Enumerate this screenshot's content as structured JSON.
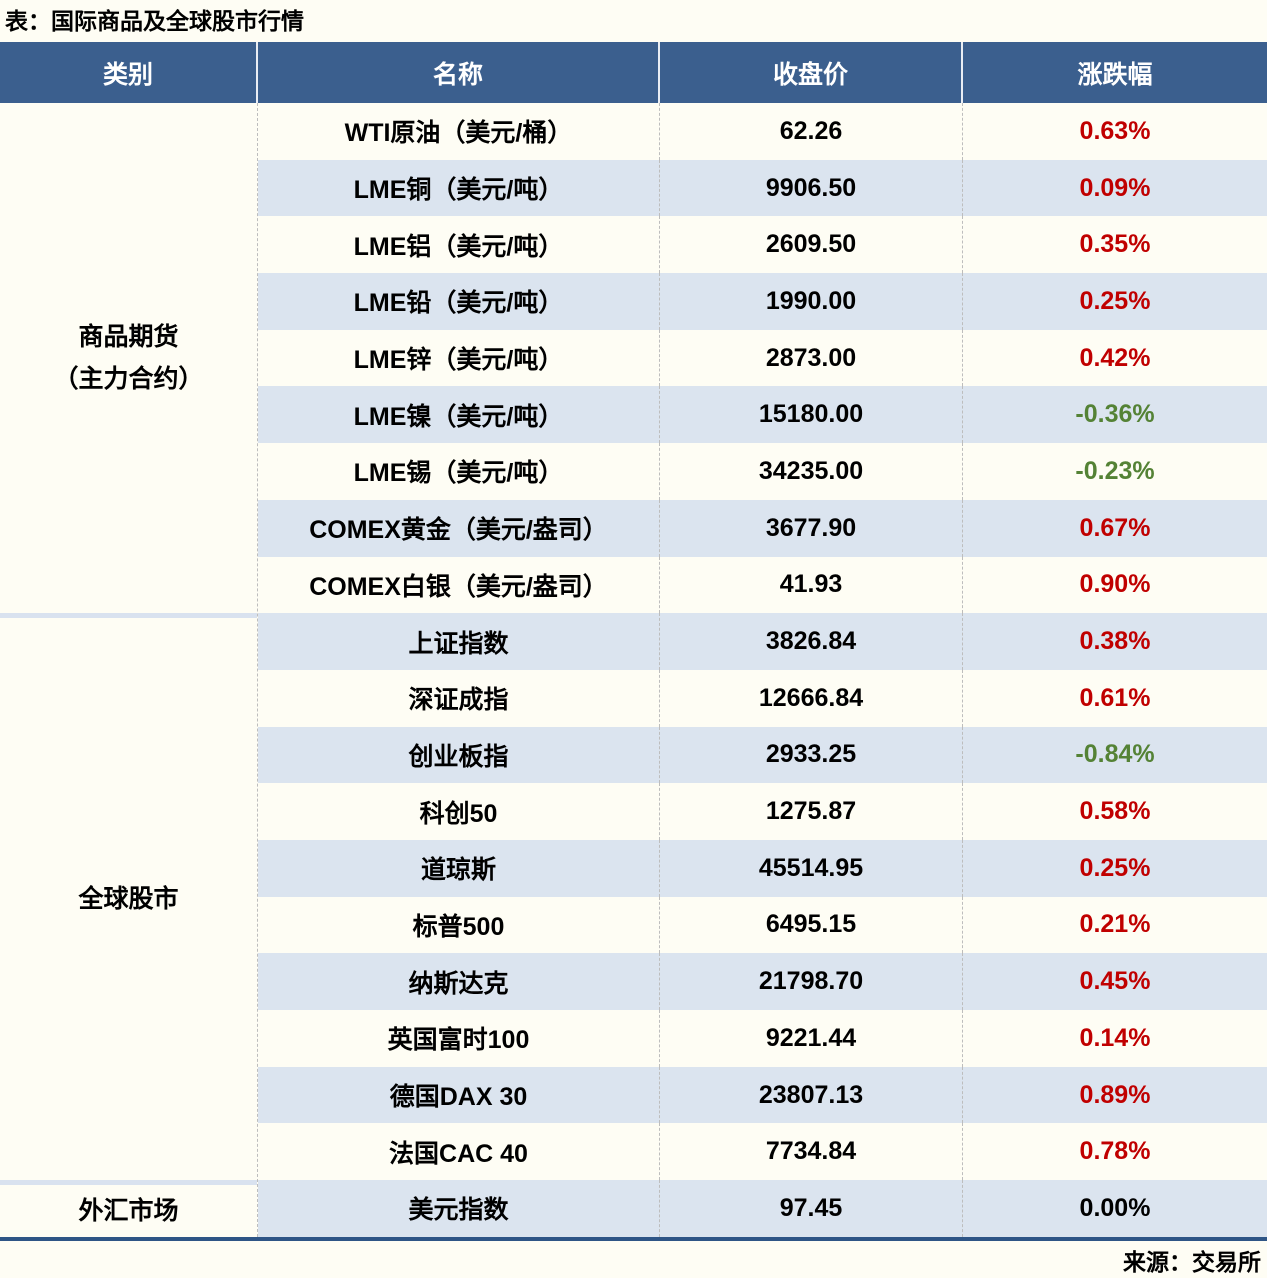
{
  "title": "表：国际商品及全球股市行情",
  "source": "来源：交易所",
  "colors": {
    "header_bg": "#3B5F8E",
    "stripe": "#DBE4EF",
    "group_separator": "#D9E2EF",
    "bottom_border": "#2E5586",
    "up": "#C00000",
    "down": "#548235",
    "flat": "#000000"
  },
  "table": {
    "headers": [
      "类别",
      "名称",
      "收盘价",
      "涨跌幅"
    ],
    "groups": [
      {
        "category_lines": [
          "商品期货",
          "（主力合约）"
        ],
        "rows": [
          {
            "name": "WTI原油（美元/桶）",
            "close": "62.26",
            "change": "0.63%",
            "direction": "up"
          },
          {
            "name": "LME铜（美元/吨）",
            "close": "9906.50",
            "change": "0.09%",
            "direction": "up"
          },
          {
            "name": "LME铝（美元/吨）",
            "close": "2609.50",
            "change": "0.35%",
            "direction": "up"
          },
          {
            "name": "LME铅（美元/吨）",
            "close": "1990.00",
            "change": "0.25%",
            "direction": "up"
          },
          {
            "name": "LME锌（美元/吨）",
            "close": "2873.00",
            "change": "0.42%",
            "direction": "up"
          },
          {
            "name": "LME镍（美元/吨）",
            "close": "15180.00",
            "change": "-0.36%",
            "direction": "down"
          },
          {
            "name": "LME锡（美元/吨）",
            "close": "34235.00",
            "change": "-0.23%",
            "direction": "down"
          },
          {
            "name": "COMEX黄金（美元/盎司）",
            "close": "3677.90",
            "change": "0.67%",
            "direction": "up"
          },
          {
            "name": "COMEX白银（美元/盎司）",
            "close": "41.93",
            "change": "0.90%",
            "direction": "up"
          }
        ]
      },
      {
        "category_lines": [
          "全球股市"
        ],
        "rows": [
          {
            "name": "上证指数",
            "close": "3826.84",
            "change": "0.38%",
            "direction": "up"
          },
          {
            "name": "深证成指",
            "close": "12666.84",
            "change": "0.61%",
            "direction": "up"
          },
          {
            "name": "创业板指",
            "close": "2933.25",
            "change": "-0.84%",
            "direction": "down"
          },
          {
            "name": "科创50",
            "close": "1275.87",
            "change": "0.58%",
            "direction": "up"
          },
          {
            "name": "道琼斯",
            "close": "45514.95",
            "change": "0.25%",
            "direction": "up"
          },
          {
            "name": "标普500",
            "close": "6495.15",
            "change": "0.21%",
            "direction": "up"
          },
          {
            "name": "纳斯达克",
            "close": "21798.70",
            "change": "0.45%",
            "direction": "up"
          },
          {
            "name": "英国富时100",
            "close": "9221.44",
            "change": "0.14%",
            "direction": "up"
          },
          {
            "name": "德国DAX 30",
            "close": "23807.13",
            "change": "0.89%",
            "direction": "up"
          },
          {
            "name": "法国CAC 40",
            "close": "7734.84",
            "change": "0.78%",
            "direction": "up"
          }
        ]
      },
      {
        "category_lines": [
          "外汇市场"
        ],
        "rows": [
          {
            "name": "美元指数",
            "close": "97.45",
            "change": "0.00%",
            "direction": "flat"
          }
        ]
      }
    ]
  }
}
